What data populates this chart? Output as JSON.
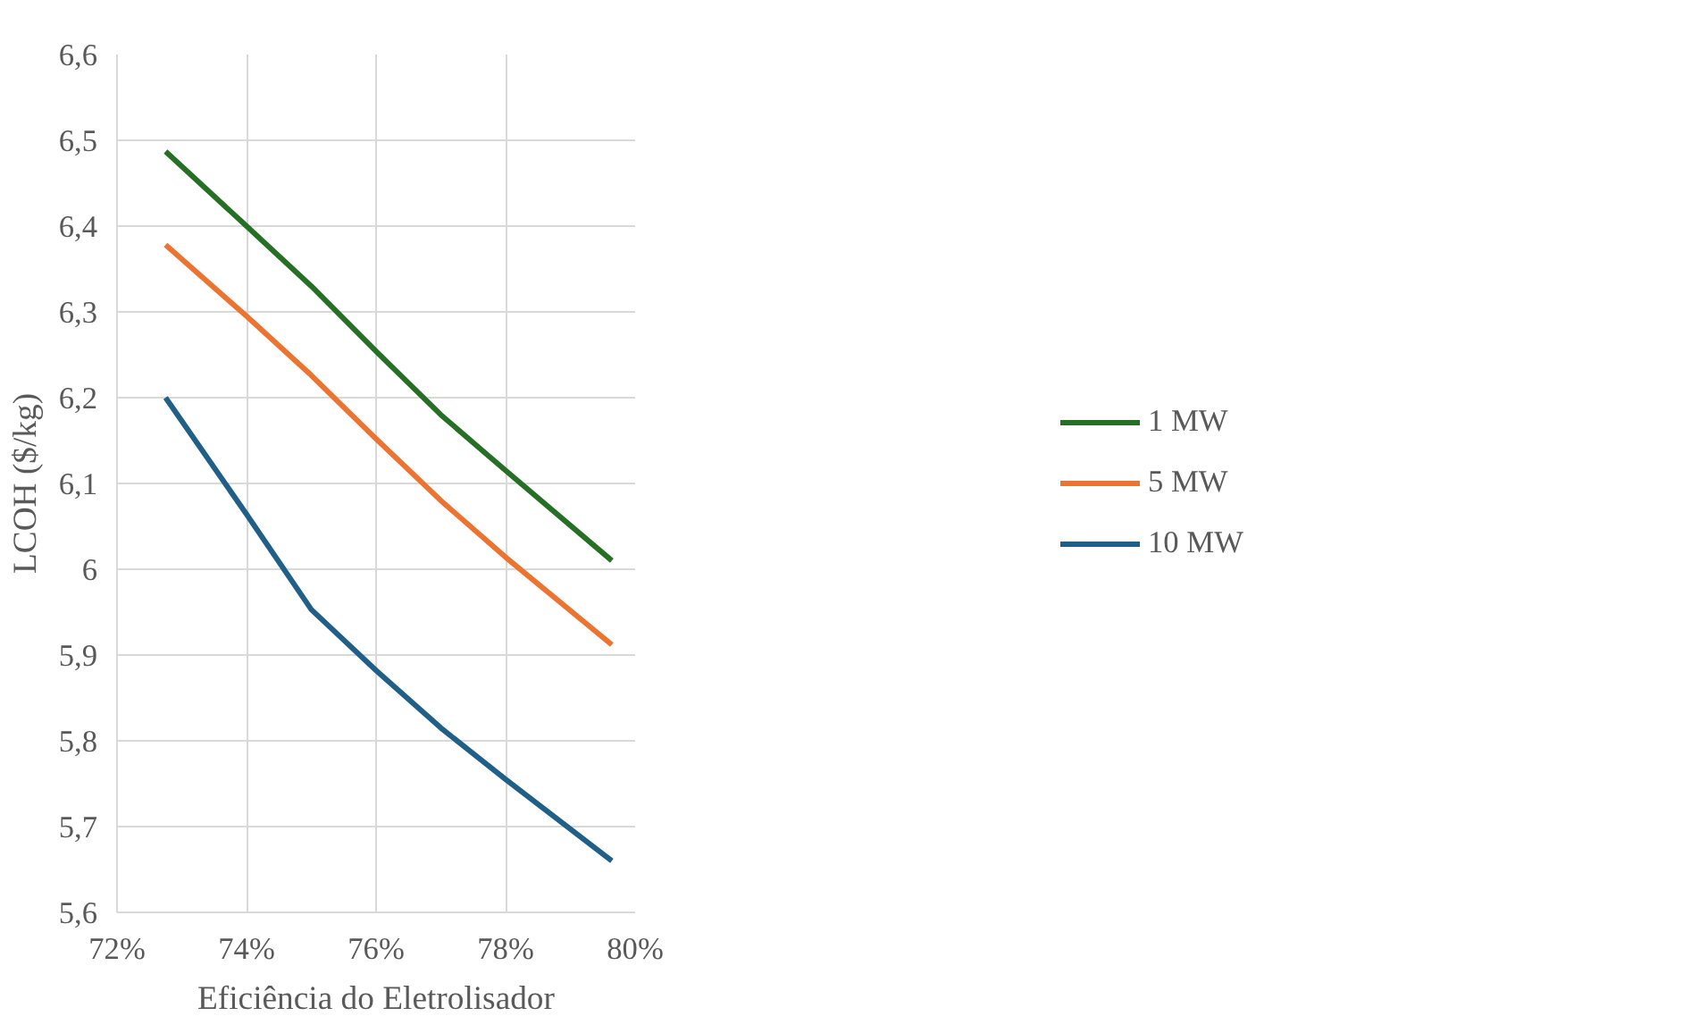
{
  "chart_data": {
    "type": "line",
    "xlabel": "Eficiência do Eletrolisador",
    "ylabel": "LCOH ($/kg)",
    "x": [
      72.75,
      74,
      75,
      76,
      77,
      78,
      79.64
    ],
    "series": [
      {
        "name": "1 MW",
        "color": "#267026",
        "values": [
          6.487,
          6.4,
          6.33,
          6.254,
          6.18,
          6.115,
          6.01
        ]
      },
      {
        "name": "5 MW",
        "color": "#ed7330",
        "values": [
          6.378,
          6.295,
          6.226,
          6.152,
          6.08,
          6.014,
          5.912
        ]
      },
      {
        "name": "10 MW",
        "color": "#1f5f88",
        "values": [
          6.2,
          6.064,
          5.953,
          5.882,
          5.815,
          5.755,
          5.66
        ]
      }
    ],
    "xlim": [
      72,
      80
    ],
    "xticks": [
      {
        "value": 72,
        "label": "72%"
      },
      {
        "value": 74,
        "label": "74%"
      },
      {
        "value": 76,
        "label": "76%"
      },
      {
        "value": 78,
        "label": "78%"
      },
      {
        "value": 80,
        "label": "80%"
      }
    ],
    "ylim": [
      5.6,
      6.6
    ],
    "yticks": [
      {
        "value": 5.6,
        "label": "5,6"
      },
      {
        "value": 5.7,
        "label": "5,7"
      },
      {
        "value": 5.8,
        "label": "5,8"
      },
      {
        "value": 5.9,
        "label": "5,9"
      },
      {
        "value": 6,
        "label": "6"
      },
      {
        "value": 6.1,
        "label": "6,1"
      },
      {
        "value": 6.2,
        "label": "6,2"
      },
      {
        "value": 6.3,
        "label": "6,3"
      },
      {
        "value": 6.4,
        "label": "6,4"
      },
      {
        "value": 6.5,
        "label": "6,5"
      },
      {
        "value": 6.6,
        "label": "6,6"
      }
    ],
    "grid": true,
    "legend": "right",
    "marker": "none",
    "line_style": "solid"
  }
}
